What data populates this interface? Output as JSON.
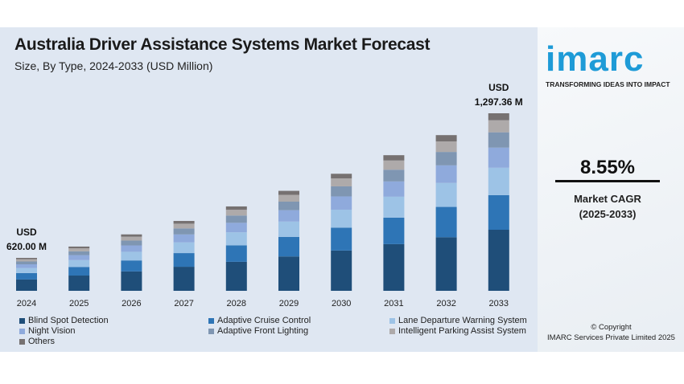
{
  "chart_data": {
    "type": "bar",
    "stacked": true,
    "title": "Australia Driver Assistance Systems Market Forecast",
    "subtitle": "Size, By Type, 2024-2033 (USD Million)",
    "categories": [
      "2024",
      "2025",
      "2026",
      "2027",
      "2028",
      "2029",
      "2030",
      "2031",
      "2032",
      "2033"
    ],
    "totals": [
      620.0,
      673,
      730,
      793,
      861,
      934,
      1014,
      1101,
      1195,
      1297.36
    ],
    "series": [
      {
        "name": "Blind Spot Detection",
        "color": "#1f4e79",
        "values": [
          213,
          232,
          251,
          273,
          296,
          321,
          349,
          379,
          411,
          446
        ]
      },
      {
        "name": "Adaptive Cruise Control",
        "color": "#2e75b6",
        "values": [
          121,
          131,
          142,
          155,
          168,
          182,
          198,
          215,
          233,
          253
        ]
      },
      {
        "name": "Lane Departure Warning System",
        "color": "#9dc3e6",
        "values": [
          95,
          104,
          112,
          122,
          133,
          144,
          156,
          170,
          184,
          200
        ]
      },
      {
        "name": "Night Vision",
        "color": "#8faadc",
        "values": [
          70,
          76,
          82,
          90,
          97,
          106,
          115,
          124,
          135,
          147
        ]
      },
      {
        "name": "Adaptive Front Lighting",
        "color": "#7f96b2",
        "values": [
          53,
          58,
          63,
          68,
          74,
          80,
          87,
          95,
          103,
          112
        ]
      },
      {
        "name": "Intelligent Parking Assist System",
        "color": "#aeaaaa",
        "values": [
          42,
          46,
          50,
          54,
          59,
          64,
          69,
          75,
          81,
          88
        ]
      },
      {
        "name": "Others",
        "color": "#767171",
        "values": [
          26,
          26,
          30,
          31,
          34,
          37,
          40,
          43,
          48,
          51
        ]
      }
    ],
    "annotations": [
      {
        "category": "2024",
        "line1": "USD",
        "line2": "620.00 M"
      },
      {
        "category": "2033",
        "line1": "USD",
        "line2": "1,297.36 M"
      }
    ],
    "legend": "bottom",
    "grid": false
  },
  "brand": {
    "logo": "imarc",
    "tagline": "TRANSFORMING IDEAS INTO IMPACT"
  },
  "cagr": {
    "value": "8.55%",
    "label": "Market CAGR",
    "period": "(2025-2033)"
  },
  "copyright": {
    "line1": "© Copyright",
    "line2": "IMARC Services Private Limited 2025"
  }
}
